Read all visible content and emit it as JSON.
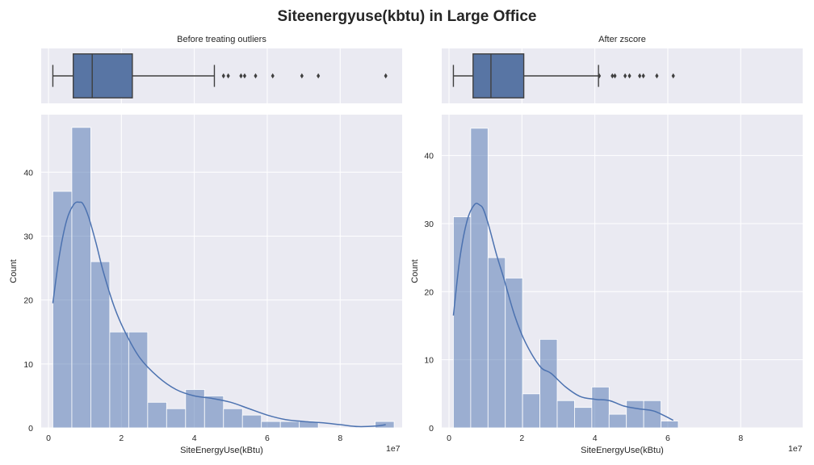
{
  "chart_data": {
    "title": "Siteenergyuse(kbtu) in Large Office",
    "style": {
      "panel_bg": "#EAEAF2",
      "grid_color": "#FFFFFF",
      "bar_fill": "#4C72B0",
      "bar_fill_opacity": 0.5,
      "kde_color": "#4C72B0",
      "box_fill": "#5875A4",
      "line_color": "#3F3F3F"
    },
    "panels": [
      {
        "subtitle": "Before treating outliers",
        "boxplot": {
          "type": "box",
          "whisker_low": 0.12,
          "q1": 0.68,
          "median": 1.2,
          "q3": 2.3,
          "whisker_high": 4.55,
          "outliers": [
            4.8,
            4.93,
            5.28,
            5.38,
            5.68,
            6.15,
            6.95,
            7.4,
            9.25
          ]
        },
        "histogram": {
          "type": "bar",
          "xlabel": "SiteEnergyUse(kBtu)",
          "ylabel": "Count",
          "x_offset_text": "1e7",
          "xlim": [
            -0.2,
            9.7
          ],
          "ylim": [
            0,
            49
          ],
          "xticks": [
            0,
            2,
            4,
            6,
            8
          ],
          "yticks": [
            0,
            10,
            20,
            30,
            40
          ],
          "bin_start": 0.12,
          "bin_width": 0.52,
          "counts": [
            37,
            47,
            26,
            15,
            15,
            4,
            3,
            6,
            5,
            3,
            2,
            1,
            1,
            1,
            0,
            0,
            0,
            1
          ]
        },
        "kde": {
          "type": "line",
          "x": [
            0.12,
            0.3,
            0.5,
            0.7,
            0.85,
            0.95,
            1.1,
            1.3,
            1.5,
            1.8,
            2.1,
            2.5,
            3.0,
            3.5,
            4.0,
            4.5,
            5.0,
            5.5,
            6.0,
            6.5,
            7.0,
            7.5,
            8.0,
            8.5,
            9.0,
            9.25
          ],
          "y": [
            19.5,
            27,
            32.5,
            35,
            35.3,
            35,
            33,
            29,
            24.5,
            19,
            15,
            11,
            8,
            6,
            5,
            4.6,
            4,
            3,
            2,
            1.3,
            1,
            0.8,
            0.5,
            0.2,
            0.3,
            0.5
          ]
        }
      },
      {
        "subtitle": "After zscore",
        "boxplot": {
          "type": "box",
          "whisker_low": 0.12,
          "q1": 0.66,
          "median": 1.15,
          "q3": 2.05,
          "whisker_high": 4.1,
          "outliers": [
            4.12,
            4.48,
            4.55,
            4.83,
            4.95,
            5.23,
            5.33,
            5.7,
            6.15
          ]
        },
        "histogram": {
          "type": "bar",
          "xlabel": "SiteEnergyUse(kBtu)",
          "ylabel": "Count",
          "x_offset_text": "1e7",
          "xlim": [
            -0.2,
            9.7
          ],
          "ylim": [
            0,
            46
          ],
          "xticks": [
            0,
            2,
            4,
            6,
            8
          ],
          "yticks": [
            0,
            10,
            20,
            30,
            40
          ],
          "bin_start": 0.12,
          "bin_width": 0.4745,
          "counts": [
            31,
            44,
            25,
            22,
            5,
            13,
            4,
            3,
            6,
            2,
            4,
            4,
            1
          ]
        },
        "kde": {
          "type": "line",
          "x": [
            0.12,
            0.3,
            0.5,
            0.7,
            0.85,
            0.95,
            1.1,
            1.3,
            1.5,
            1.8,
            2.1,
            2.5,
            2.8,
            3.2,
            3.6,
            4.0,
            4.4,
            4.8,
            5.2,
            5.6,
            5.9,
            6.15
          ],
          "y": [
            16.5,
            25,
            30.5,
            32.8,
            32.7,
            32,
            29.5,
            25.5,
            22,
            16.5,
            12.5,
            9,
            8,
            6,
            4.6,
            4.2,
            4,
            3.2,
            2.8,
            2.5,
            1.8,
            1.1
          ]
        }
      }
    ]
  }
}
